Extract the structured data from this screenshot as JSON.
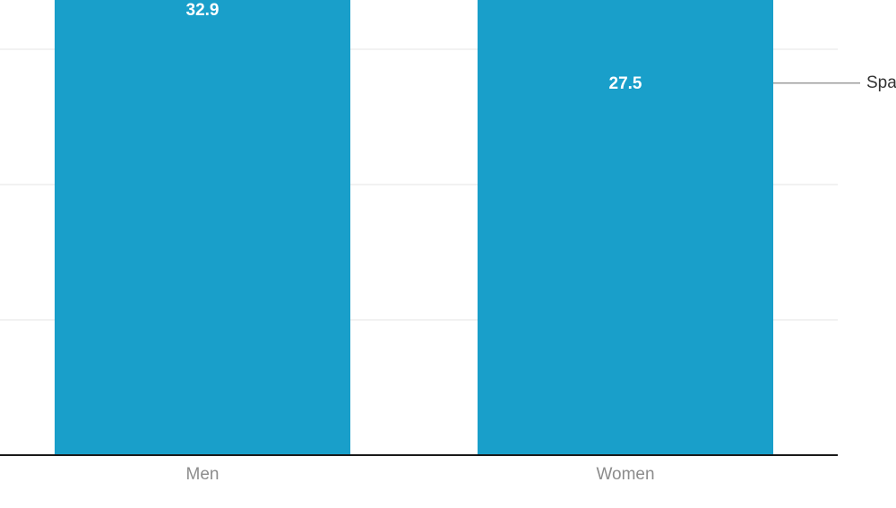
{
  "chart_data": {
    "type": "bar",
    "categories": [
      "Men",
      "Women"
    ],
    "series": [
      {
        "name": "Spa",
        "values": [
          32.9,
          27.5
        ],
        "color": "#199fca"
      }
    ],
    "value_labels": [
      "32.9",
      "27.5"
    ],
    "title": "",
    "xlabel": "",
    "ylabel": "",
    "ylim": [
      0,
      33.5
    ],
    "grid": true,
    "legend_placement": "right-cropped"
  }
}
